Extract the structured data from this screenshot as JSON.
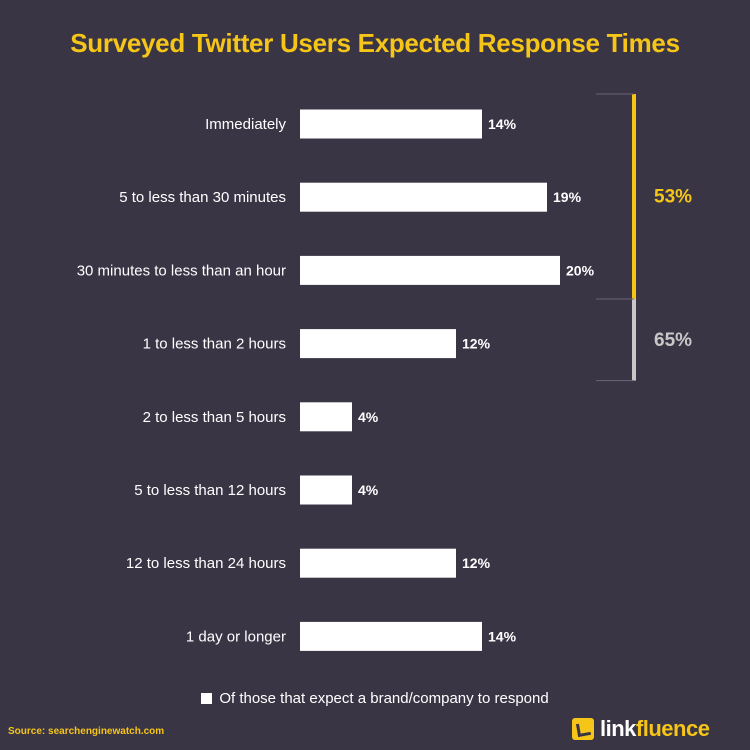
{
  "chart_data": {
    "type": "bar",
    "orientation": "horizontal",
    "title": "Surveyed Twitter Users Expected Response Times",
    "categories": [
      "Immediately",
      "5 to less than 30 minutes",
      "30 minutes to less than an hour",
      "1 to less than 2 hours",
      "2 to less than 5 hours",
      "5 to less than 12 hours",
      "12 to less than 24 hours",
      "1 day or longer"
    ],
    "values": [
      14,
      19,
      20,
      12,
      4,
      4,
      12,
      14
    ],
    "value_labels": [
      "14%",
      "19%",
      "20%",
      "12%",
      "4%",
      "4%",
      "12%",
      "14%"
    ],
    "series_name": "Of those that expect a brand/company to respond",
    "legend_position": "bottom",
    "grid": false,
    "xlim": [
      0,
      20
    ],
    "annotations": [
      {
        "label": "53%",
        "from_category": 0,
        "to_category": 2,
        "color": "#f5c518"
      },
      {
        "label": "65%",
        "from_category": 0,
        "to_category": 3,
        "color": "#c8c8c8"
      }
    ]
  },
  "source": "Source: searchenginewatch.com",
  "logo": {
    "prefix": "link",
    "suffix": "fluence"
  },
  "colors": {
    "background": "#3a3545",
    "bar": "#ffffff",
    "accent": "#f5c518",
    "secondary_bracket": "#c8c8c8"
  }
}
